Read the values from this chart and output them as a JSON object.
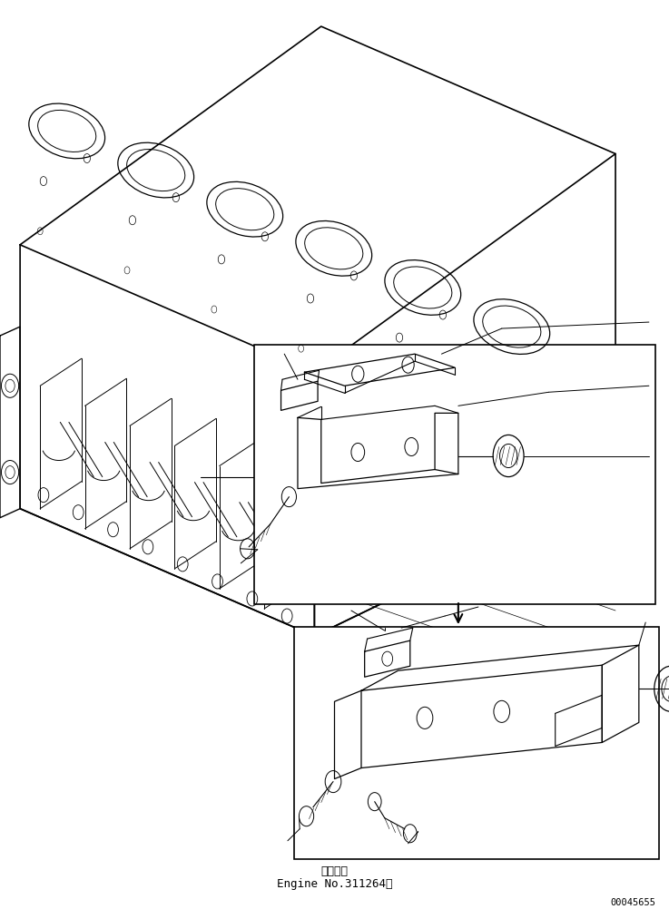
{
  "bg_color": "#ffffff",
  "line_color": "#000000",
  "fig_width": 7.37,
  "fig_height": 10.03,
  "dpi": 100,
  "bottom_text_line1": "通用号機",
  "bottom_text_line2": "Engine No.311264～",
  "page_number": "00045655"
}
